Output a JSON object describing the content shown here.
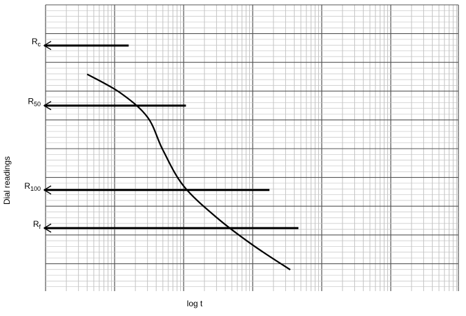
{
  "chart_data": {
    "type": "line",
    "title": "",
    "xlabel": "log t",
    "ylabel": "Dial readings",
    "x_scale": "log",
    "grid": true,
    "curve": {
      "name": "",
      "points": [
        [
          0.4,
          0.876
        ],
        [
          1.2,
          0.796
        ],
        [
          3.0,
          0.69
        ],
        [
          5.0,
          0.548
        ],
        [
          10.0,
          0.392
        ],
        [
          30.0,
          0.256
        ],
        [
          100.0,
          0.137
        ],
        [
          350.0,
          0.03
        ]
      ]
    },
    "reference_lines": [
      {
        "label_base": "R",
        "label_sub": "c",
        "y": 1.0,
        "x_end": 1.6
      },
      {
        "label_base": "R",
        "label_sub": "50",
        "y": 0.74,
        "x_end": 10.8
      },
      {
        "label_base": "R",
        "label_sub": "100",
        "y": 0.375,
        "x_end": 175
      },
      {
        "label_base": "R",
        "label_sub": "f",
        "y": 0.21,
        "x_end": 460
      }
    ]
  }
}
